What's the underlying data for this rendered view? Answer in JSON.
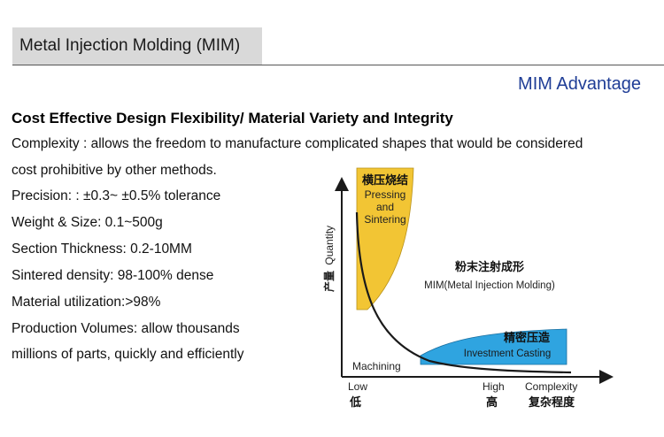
{
  "header": {
    "title": "Metal Injection Molding (MIM)",
    "subtitle": "MIM Advantage"
  },
  "main": {
    "heading": "Cost Effective Design Flexibility/ Material Variety and Integrity",
    "lines": [
      "Complexity : allows the freedom to manufacture complicated shapes that would be considered",
      "cost prohibitive by other methods.",
      "Precision: : ±0.3~ ±0.5% tolerance",
      "Weight & Size: 0.1~500g",
      "Section Thickness: 0.2-10MM",
      "Sintered density: 98-100% dense",
      "Material utilization:>98%",
      "Production Volumes: allow thousands",
      "millions of parts, quickly and efficiently"
    ]
  },
  "diagram": {
    "y_axis_label_cn": "产量",
    "y_axis_label_en": "Quantity",
    "pressing": {
      "cn": "横压烧结",
      "en1": "Pressing",
      "en2": "and",
      "en3": "Sintering"
    },
    "mim": {
      "cn": "粉末注射成形",
      "en": "MIM(Metal Injection Molding)"
    },
    "casting": {
      "cn": "精密压造",
      "en": "Investment Casting"
    },
    "machining": "Machining",
    "x_low_en": "Low",
    "x_low_cn": "低",
    "x_high_en": "High",
    "x_high_cn": "高",
    "x_complexity_en": "Complexity",
    "x_complexity_cn": "复杂程度",
    "colors": {
      "pressing_fill": "#f2c534",
      "casting_fill": "#2fa4e0",
      "curve": "#1a1a1a"
    }
  }
}
